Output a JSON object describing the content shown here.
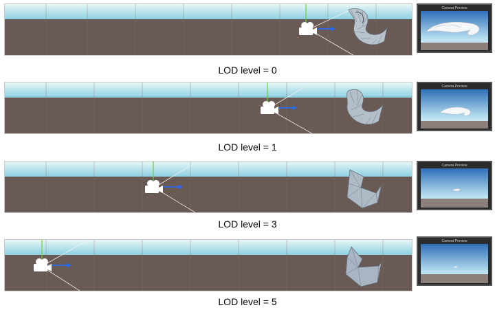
{
  "panels": [
    {
      "caption": "LOD level = 0",
      "preview_title": "Camera Preview",
      "lod": 0
    },
    {
      "caption": "LOD level = 1",
      "preview_title": "Camera Preview",
      "lod": 1
    },
    {
      "caption": "LOD level = 3",
      "preview_title": "Camera Preview",
      "lod": 3
    },
    {
      "caption": "LOD level = 5",
      "preview_title": "Camera Preview",
      "lod": 5
    }
  ],
  "colors": {
    "sky_top": "#d7efef",
    "sky_horizon": "#8ccfe0",
    "ground": "#6a5a55",
    "preview_frame": "#2b2b2b",
    "camera_icon": "#ffffff",
    "forward_axis": "#1f6cff",
    "up_axis": "#6bd22a"
  },
  "icons": {
    "camera": "camera-icon",
    "mesh": "spiral-mesh"
  }
}
